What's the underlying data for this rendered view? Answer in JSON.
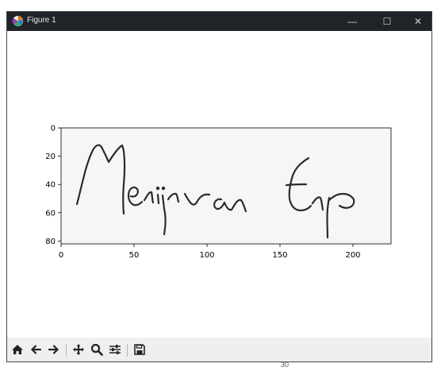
{
  "window": {
    "title": "Figure 1",
    "controls": {
      "minimize": "—",
      "maximize": "☐",
      "close": "✕"
    }
  },
  "toolbar": {
    "buttons": [
      {
        "name": "home-icon",
        "label": "Home"
      },
      {
        "name": "back-arrow-icon",
        "label": "Back"
      },
      {
        "name": "forward-arrow-icon",
        "label": "Forward"
      },
      {
        "name": "pan-icon",
        "label": "Pan"
      },
      {
        "name": "zoom-icon",
        "label": "Zoom"
      },
      {
        "name": "configure-subplots-icon",
        "label": "Configure subplots"
      },
      {
        "name": "save-icon",
        "label": "Save"
      }
    ]
  },
  "chart_data": {
    "type": "image",
    "xticks": [
      0,
      50,
      100,
      150,
      200
    ],
    "yticks": [
      0,
      20,
      40,
      60,
      80
    ],
    "xlim": [
      0,
      226
    ],
    "ylim": [
      82,
      0
    ],
    "image_content": "handwritten signature",
    "image_text": "Merijn van Erp"
  },
  "page_number": "30",
  "colors": {
    "titlebar": "#202428",
    "toolbar": "#efefef",
    "ink": "#2b2b2b"
  }
}
